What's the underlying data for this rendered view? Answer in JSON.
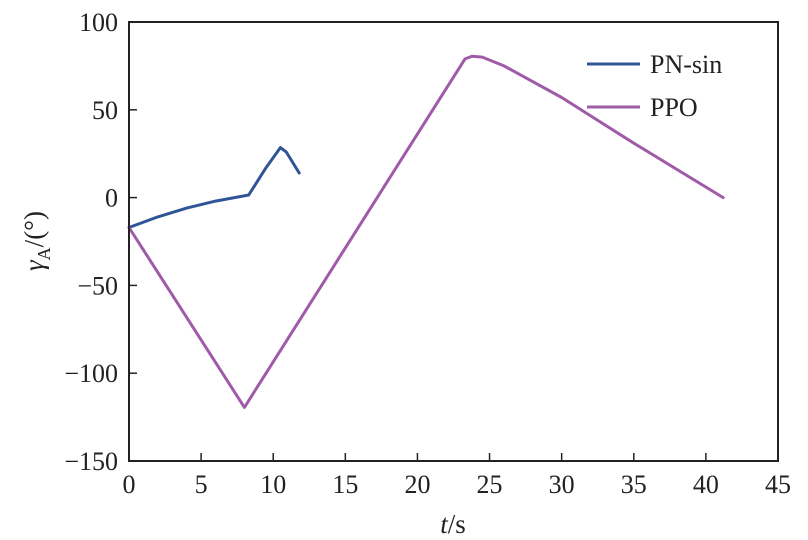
{
  "chart_data": {
    "type": "line",
    "title": "",
    "xlabel": {
      "main": "t",
      "suffix": "/s"
    },
    "ylabel": {
      "main": "γ",
      "sub": "A",
      "suffix": "/(°)"
    },
    "xlim": [
      0,
      45
    ],
    "ylim": [
      -150,
      100
    ],
    "xticks": [
      0,
      5,
      10,
      15,
      20,
      25,
      30,
      35,
      40,
      45
    ],
    "yticks": [
      100,
      50,
      0,
      -50,
      -100,
      -150
    ],
    "ytick_labels": [
      "100",
      "50",
      "0",
      "−50",
      "−100",
      "−150"
    ],
    "grid": false,
    "legend": "top-right",
    "series": [
      {
        "name": "PN-sin",
        "color": "#2f5597",
        "x": [
          0,
          2,
          4,
          6,
          8.3,
          9.5,
          10.5,
          10.9,
          11.8
        ],
        "y": [
          -17,
          -11,
          -6,
          -2,
          1.5,
          17,
          28.5,
          26,
          14
        ]
      },
      {
        "name": "PPO",
        "color": "#a05ba8",
        "x": [
          0,
          8,
          23.3,
          23.8,
          24.5,
          26,
          30,
          35,
          41.2
        ],
        "y": [
          -17,
          -119.5,
          79,
          80.5,
          80,
          75,
          57,
          31,
          0
        ]
      }
    ]
  }
}
